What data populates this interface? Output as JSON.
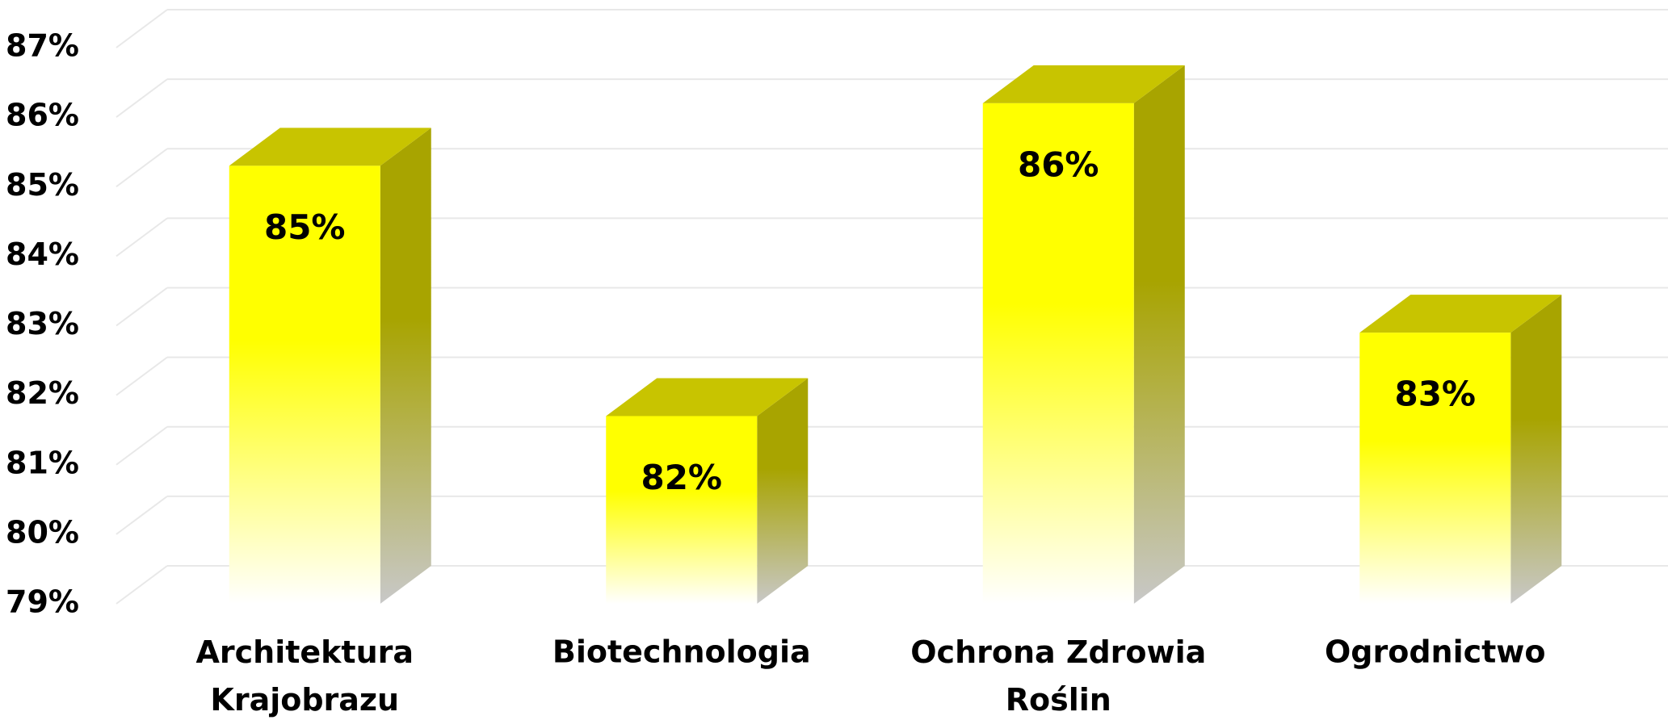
{
  "chart_data": {
    "type": "bar3d",
    "categories": [
      "Architektura Krajobrazu",
      "Biotechnologia",
      "Ochrona Zdrowia Roślin",
      "Ogrodnictwo"
    ],
    "values": [
      85.3,
      81.7,
      86.2,
      82.9
    ],
    "value_labels": [
      "85%",
      "82%",
      "86%",
      "83%"
    ],
    "color": "#ffff00",
    "ylim": [
      79,
      87
    ],
    "yticks": [
      {
        "value": 79,
        "label": "79%"
      },
      {
        "value": 80,
        "label": "80%"
      },
      {
        "value": 81,
        "label": "81%"
      },
      {
        "value": 82,
        "label": "82%"
      },
      {
        "value": 83,
        "label": "83%"
      },
      {
        "value": 84,
        "label": "84%"
      },
      {
        "value": 85,
        "label": "85%"
      },
      {
        "value": 86,
        "label": "86%"
      },
      {
        "value": 87,
        "label": "87%"
      }
    ],
    "grid": true
  }
}
